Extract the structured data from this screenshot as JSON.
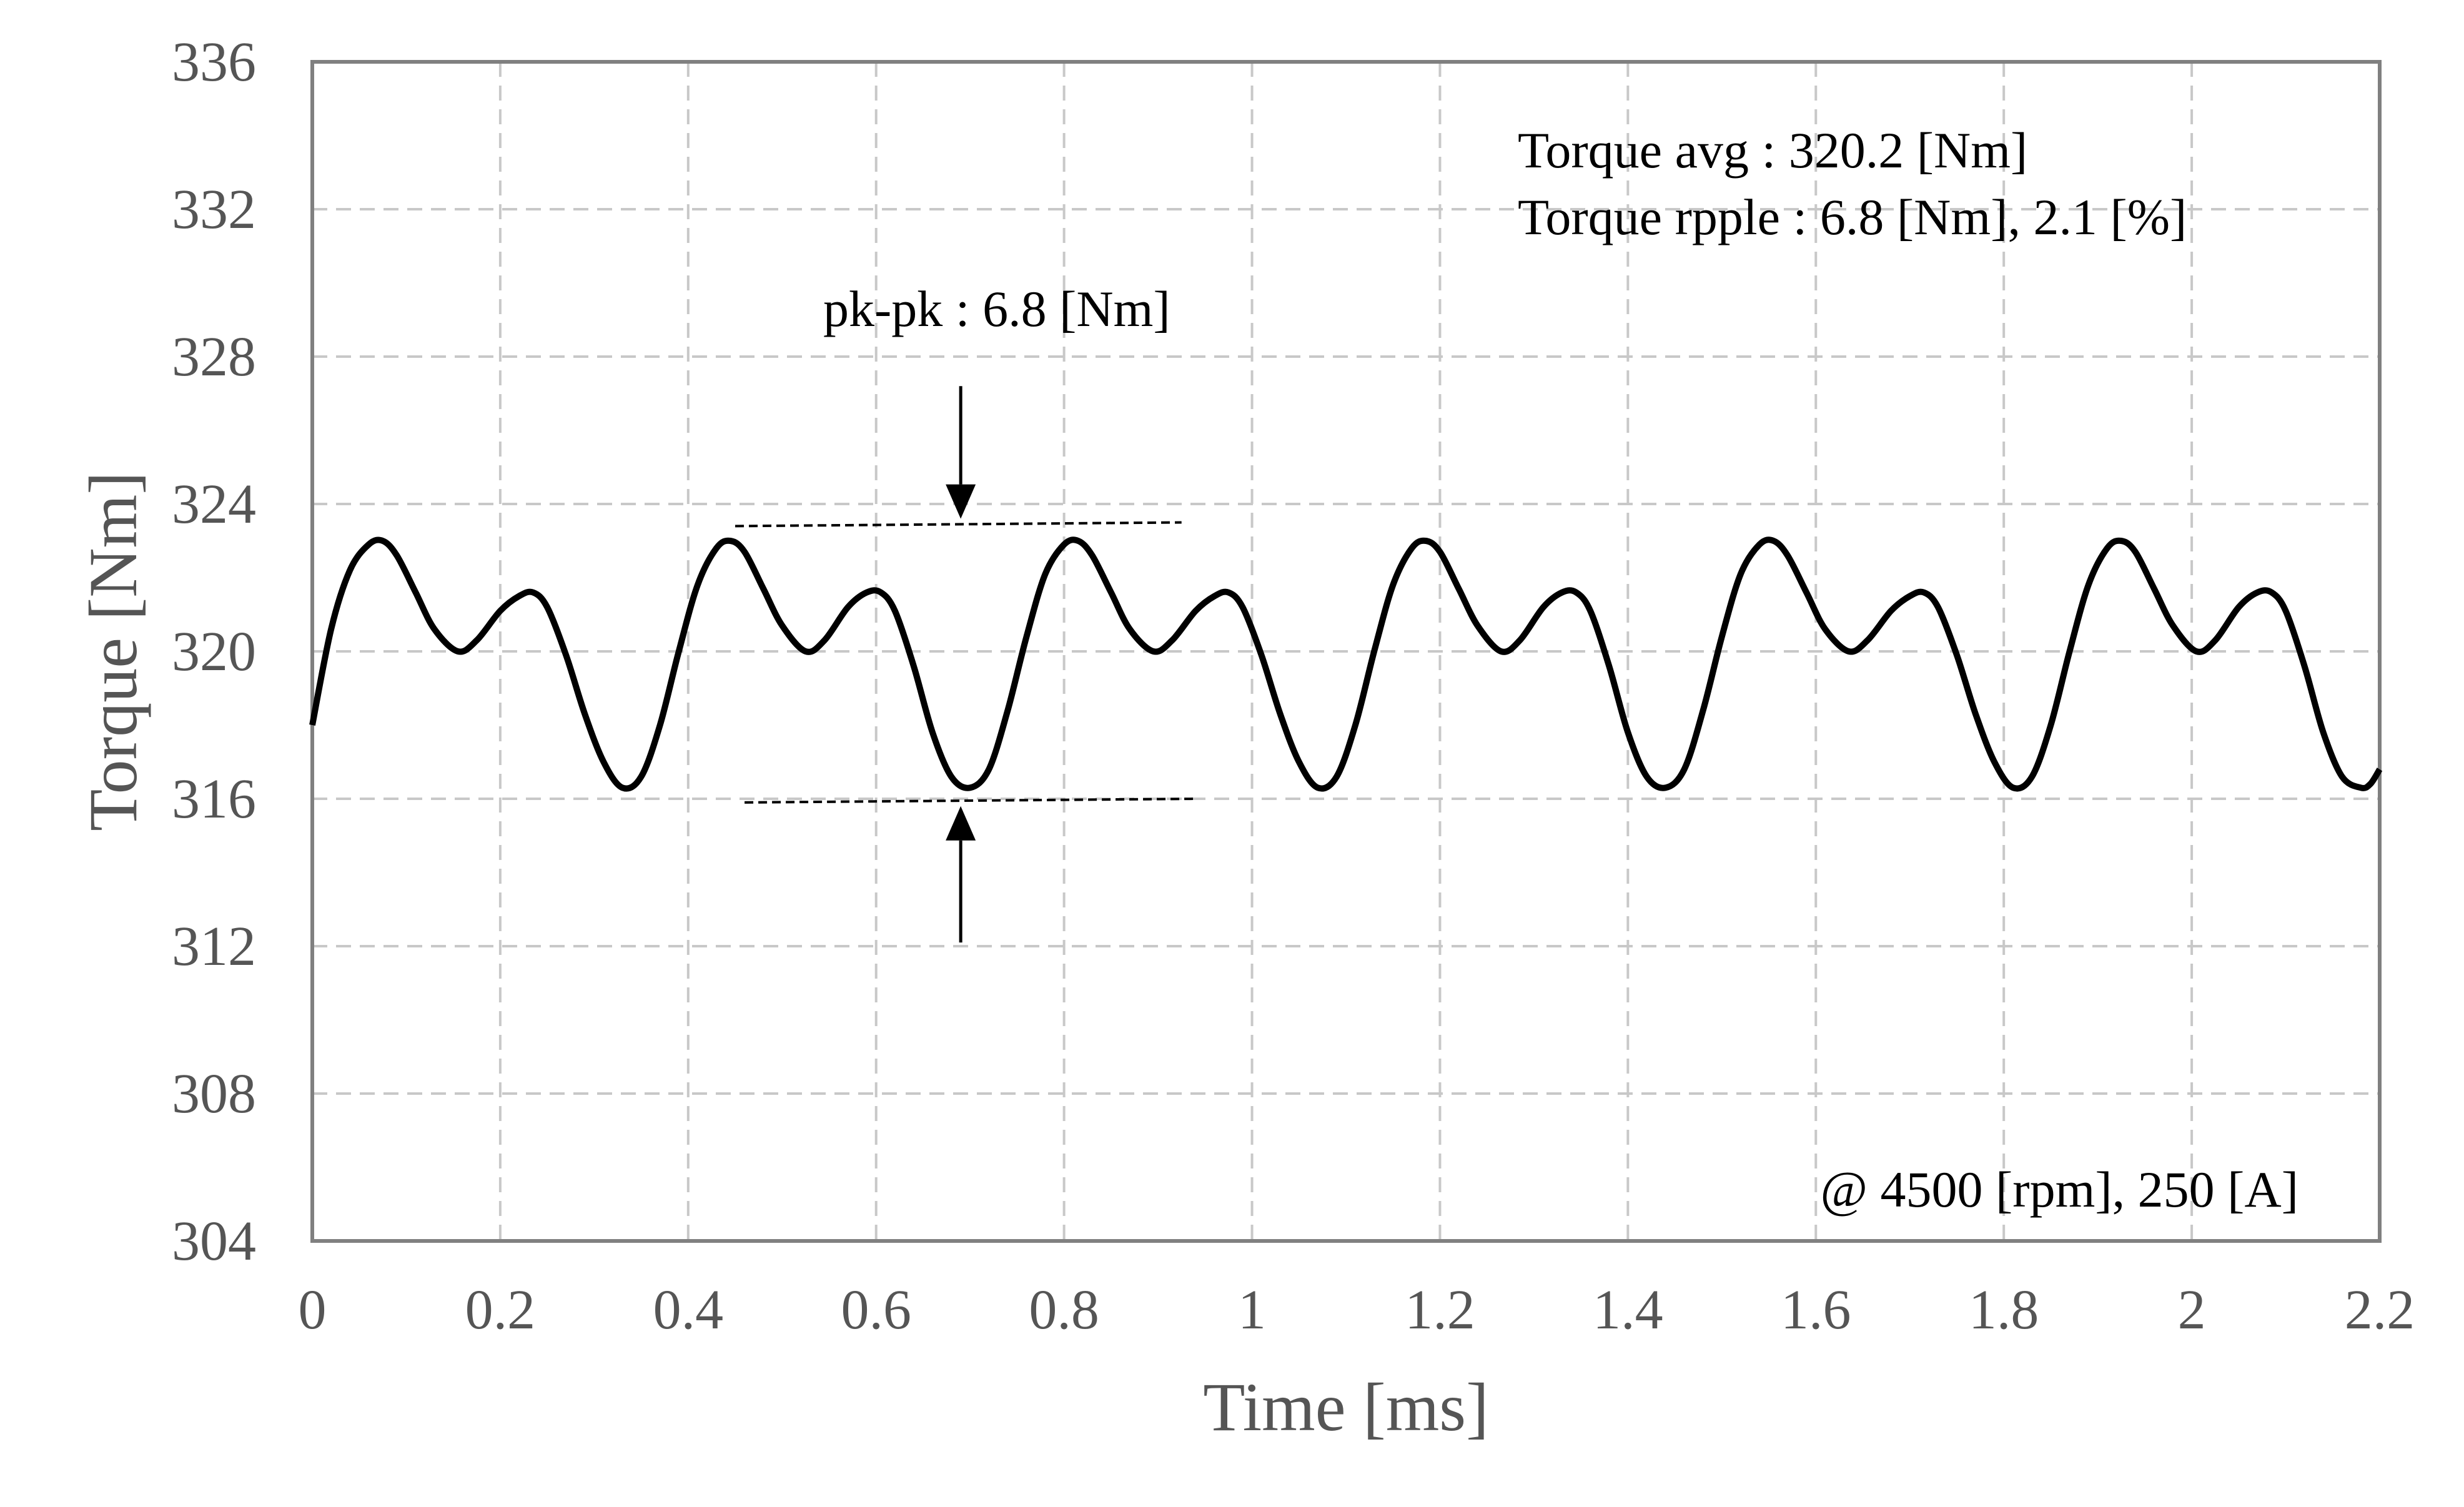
{
  "chart_data": {
    "type": "line",
    "title": "",
    "xlabel": "Time [ms]",
    "ylabel": "Torque [Nm]",
    "xlim": [
      0,
      2.2
    ],
    "ylim": [
      304,
      336
    ],
    "x_ticks": [
      "0",
      "0.2",
      "0.4",
      "0.6",
      "0.8",
      "1",
      "1.2",
      "1.4",
      "1.6",
      "1.8",
      "2",
      "2.2"
    ],
    "y_ticks": [
      "304",
      "308",
      "312",
      "316",
      "320",
      "324",
      "328",
      "332",
      "336"
    ],
    "grid": true,
    "series": [
      {
        "color": "#000000",
        "x": [
          0,
          0.02,
          0.04,
          0.06,
          0.075,
          0.09,
          0.11,
          0.13,
          0.155,
          0.175,
          0.2,
          0.22,
          0.235,
          0.25,
          0.27,
          0.29,
          0.31,
          0.33,
          0.35,
          0.37,
          0.39,
          0.41,
          0.43,
          0.445,
          0.46,
          0.48,
          0.5,
          0.525,
          0.545,
          0.57,
          0.59,
          0.605,
          0.62,
          0.64,
          0.66,
          0.68,
          0.7,
          0.72,
          0.74,
          0.76,
          0.78,
          0.8,
          0.815,
          0.83,
          0.85,
          0.87,
          0.895,
          0.915,
          0.94,
          0.96,
          0.975,
          0.99,
          1.01,
          1.03,
          1.05,
          1.07,
          1.09,
          1.11,
          1.13,
          1.15,
          1.17,
          1.185,
          1.2,
          1.22,
          1.24,
          1.265,
          1.285,
          1.31,
          1.33,
          1.345,
          1.36,
          1.38,
          1.4,
          1.42,
          1.44,
          1.46,
          1.48,
          1.5,
          1.52,
          1.54,
          1.555,
          1.57,
          1.59,
          1.61,
          1.635,
          1.655,
          1.68,
          1.7,
          1.715,
          1.73,
          1.75,
          1.77,
          1.79,
          1.81,
          1.83,
          1.85,
          1.87,
          1.89,
          1.91,
          1.925,
          1.94,
          1.96,
          1.98,
          2.005,
          2.025,
          2.05,
          2.07,
          2.085,
          2.1,
          2.12,
          2.14,
          2.16,
          2.18,
          2.19,
          2.2
        ],
        "y": [
          318.0,
          320.6,
          322.2,
          322.9,
          323.0,
          322.6,
          321.6,
          320.6,
          320.0,
          320.3,
          321.1,
          321.5,
          321.6,
          321.2,
          319.9,
          318.3,
          317.0,
          316.3,
          316.6,
          318.0,
          320.0,
          321.8,
          322.8,
          323.0,
          322.7,
          321.7,
          320.7,
          320.0,
          320.3,
          321.2,
          321.6,
          321.6,
          321.1,
          319.6,
          317.8,
          316.6,
          316.3,
          316.8,
          318.4,
          320.4,
          322.1,
          322.9,
          323.0,
          322.6,
          321.6,
          320.6,
          320.0,
          320.3,
          321.1,
          321.5,
          321.6,
          321.2,
          319.9,
          318.3,
          317.0,
          316.3,
          316.6,
          318.0,
          320.0,
          321.8,
          322.8,
          323.0,
          322.7,
          321.7,
          320.7,
          320.0,
          320.3,
          321.2,
          321.6,
          321.6,
          321.1,
          319.6,
          317.8,
          316.6,
          316.3,
          316.8,
          318.4,
          320.4,
          322.1,
          322.9,
          323.0,
          322.6,
          321.6,
          320.6,
          320.0,
          320.3,
          321.1,
          321.5,
          321.6,
          321.2,
          319.9,
          318.3,
          317.0,
          316.3,
          316.6,
          318.0,
          320.0,
          321.8,
          322.8,
          323.0,
          322.7,
          321.7,
          320.7,
          320.0,
          320.3,
          321.2,
          321.6,
          321.6,
          321.1,
          319.6,
          317.8,
          316.6,
          316.3,
          316.4,
          316.8
        ]
      }
    ],
    "annotations": {
      "avg_label": "Torque avg : 320.2 [Nm]",
      "ripple_label": "Torque rpple :  6.8 [Nm], 2.1 [%]",
      "pkpk_label": "pk-pk : 6.8 [Nm]",
      "condition_label": "@ 4500 [rpm], 250 [A]",
      "peak_reference": {
        "x": [
          0.45,
          0.925
        ],
        "y": [
          323.4,
          323.5
        ]
      },
      "trough_reference": {
        "x": [
          0.46,
          0.94
        ],
        "y": [
          315.9,
          316.0
        ]
      },
      "peak_arrow": {
        "x": 0.69,
        "y_from": 327.2,
        "y_to": 323.6
      },
      "trough_arrow": {
        "x": 0.69,
        "y_from": 312.1,
        "y_to": 315.8
      }
    }
  }
}
